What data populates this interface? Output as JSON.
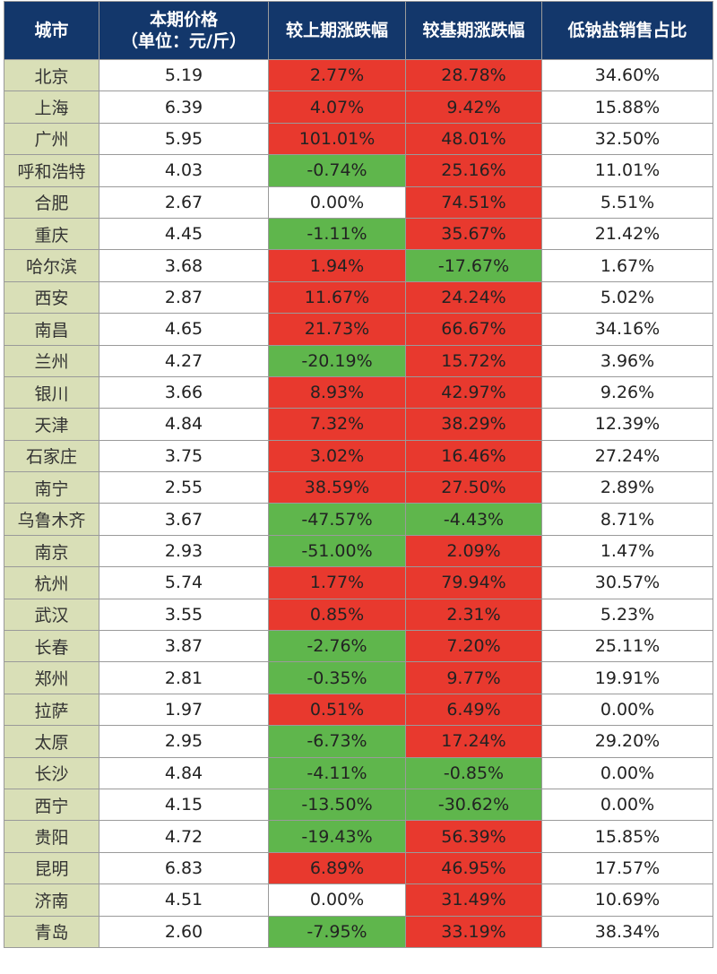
{
  "colors": {
    "header_bg": "#13376b",
    "city_bg": "#d9dfb7",
    "red": "#e8392e",
    "green": "#5fb64c",
    "neutral": "#ffffff"
  },
  "table": {
    "headers": [
      "城市",
      "本期价格\n（单位：元/斤）",
      "较上期涨跌幅",
      "较基期涨跌幅",
      "低钠盐销售占比"
    ],
    "rows": [
      {
        "city": "北京",
        "price": "5.19",
        "prev": "2.77%",
        "base": "28.78%",
        "share": "34.60%"
      },
      {
        "city": "上海",
        "price": "6.39",
        "prev": "4.07%",
        "base": "9.42%",
        "share": "15.88%"
      },
      {
        "city": "广州",
        "price": "5.95",
        "prev": "101.01%",
        "base": "48.01%",
        "share": "32.50%"
      },
      {
        "city": "呼和浩特",
        "price": "4.03",
        "prev": "-0.74%",
        "base": "25.16%",
        "share": "11.01%"
      },
      {
        "city": "合肥",
        "price": "2.67",
        "prev": "0.00%",
        "base": "74.51%",
        "share": "5.51%"
      },
      {
        "city": "重庆",
        "price": "4.45",
        "prev": "-1.11%",
        "base": "35.67%",
        "share": "21.42%"
      },
      {
        "city": "哈尔滨",
        "price": "3.68",
        "prev": "1.94%",
        "base": "-17.67%",
        "share": "1.67%"
      },
      {
        "city": "西安",
        "price": "2.87",
        "prev": "11.67%",
        "base": "24.24%",
        "share": "5.02%"
      },
      {
        "city": "南昌",
        "price": "4.65",
        "prev": "21.73%",
        "base": "66.67%",
        "share": "34.16%"
      },
      {
        "city": "兰州",
        "price": "4.27",
        "prev": "-20.19%",
        "base": "15.72%",
        "share": "3.96%"
      },
      {
        "city": "银川",
        "price": "3.66",
        "prev": "8.93%",
        "base": "42.97%",
        "share": "9.26%"
      },
      {
        "city": "天津",
        "price": "4.84",
        "prev": "7.32%",
        "base": "38.29%",
        "share": "12.39%"
      },
      {
        "city": "石家庄",
        "price": "3.75",
        "prev": "3.02%",
        "base": "16.46%",
        "share": "27.24%"
      },
      {
        "city": "南宁",
        "price": "2.55",
        "prev": "38.59%",
        "base": "27.50%",
        "share": "2.89%"
      },
      {
        "city": "乌鲁木齐",
        "price": "3.67",
        "prev": "-47.57%",
        "base": "-4.43%",
        "share": "8.71%"
      },
      {
        "city": "南京",
        "price": "2.93",
        "prev": "-51.00%",
        "base": "2.09%",
        "share": "1.47%"
      },
      {
        "city": "杭州",
        "price": "5.74",
        "prev": "1.77%",
        "base": "79.94%",
        "share": "30.57%"
      },
      {
        "city": "武汉",
        "price": "3.55",
        "prev": "0.85%",
        "base": "2.31%",
        "share": "5.23%"
      },
      {
        "city": "长春",
        "price": "3.87",
        "prev": "-2.76%",
        "base": "7.20%",
        "share": "25.11%"
      },
      {
        "city": "郑州",
        "price": "2.81",
        "prev": "-0.35%",
        "base": "9.77%",
        "share": "19.91%"
      },
      {
        "city": "拉萨",
        "price": "1.97",
        "prev": "0.51%",
        "base": "6.49%",
        "share": "0.00%"
      },
      {
        "city": "太原",
        "price": "2.95",
        "prev": "-6.73%",
        "base": "17.24%",
        "share": "29.20%"
      },
      {
        "city": "长沙",
        "price": "4.84",
        "prev": "-4.11%",
        "base": "-0.85%",
        "share": "0.00%"
      },
      {
        "city": "西宁",
        "price": "4.15",
        "prev": "-13.50%",
        "base": "-30.62%",
        "share": "0.00%"
      },
      {
        "city": "贵阳",
        "price": "4.72",
        "prev": "-19.43%",
        "base": "56.39%",
        "share": "15.85%"
      },
      {
        "city": "昆明",
        "price": "6.83",
        "prev": "6.89%",
        "base": "46.95%",
        "share": "17.57%"
      },
      {
        "city": "济南",
        "price": "4.51",
        "prev": "0.00%",
        "base": "31.49%",
        "share": "10.69%"
      },
      {
        "city": "青岛",
        "price": "2.60",
        "prev": "-7.95%",
        "base": "33.19%",
        "share": "38.34%"
      }
    ]
  }
}
